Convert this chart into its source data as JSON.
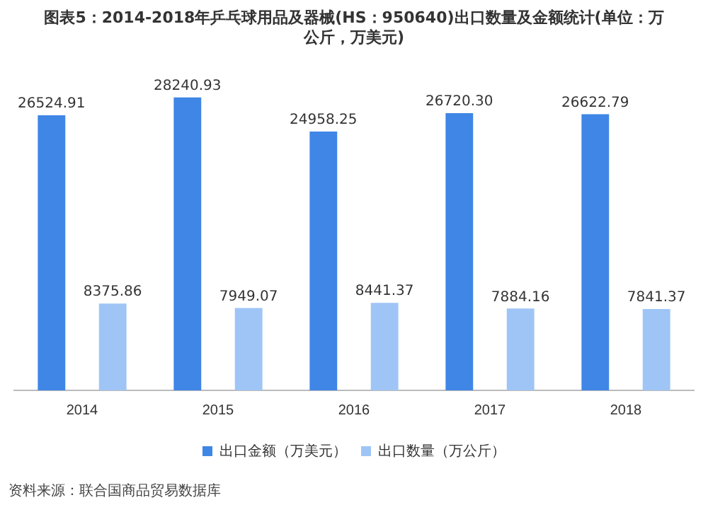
{
  "chart_data": {
    "type": "bar",
    "title": "图表5：2014-2018年乒乓球用品及器械(HS：950640)出口数量及金额统计(单位：万公斤，万美元)",
    "categories": [
      "2014",
      "2015",
      "2016",
      "2017",
      "2018"
    ],
    "series": [
      {
        "name": "出口金额（万美元）",
        "color": "#3f86e6",
        "values": [
          26524.91,
          28240.93,
          24958.25,
          26720.3,
          26622.79
        ],
        "value_labels": [
          "26524.91",
          "28240.93",
          "24958.25",
          "26720.30",
          "26622.79"
        ]
      },
      {
        "name": "出口数量（万公斤）",
        "color": "#9fc5f6",
        "values": [
          8375.86,
          7949.07,
          8441.37,
          7884.16,
          7841.37
        ],
        "value_labels": [
          "8375.86",
          "7949.07",
          "8441.37",
          "7884.16",
          "7841.37"
        ]
      }
    ],
    "legend": "bottom",
    "grid": false,
    "annotations": [
      "资料来源：联合国商品贸易数据库"
    ]
  }
}
